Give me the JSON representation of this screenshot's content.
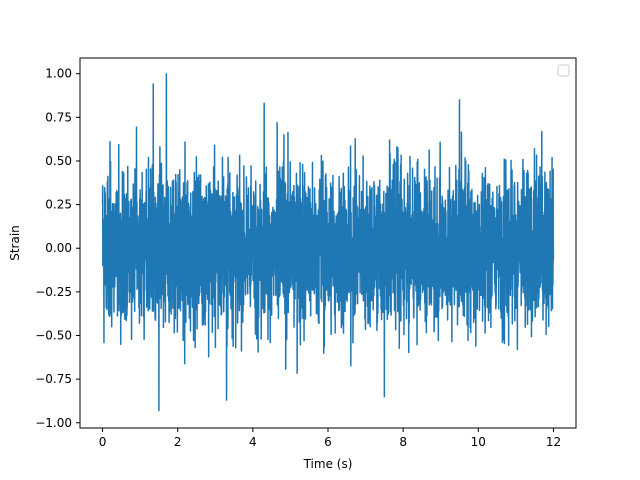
{
  "chart_data": {
    "type": "line",
    "title": "",
    "xlabel": "Time (s)",
    "ylabel": "Strain",
    "xlim": [
      -0.6,
      12.6
    ],
    "ylim": [
      -1.03,
      1.09
    ],
    "xticks": [
      0,
      2,
      4,
      6,
      8,
      10,
      12
    ],
    "xtick_labels": [
      "0",
      "2",
      "4",
      "6",
      "8",
      "10",
      "12"
    ],
    "yticks": [
      -1.0,
      -0.75,
      -0.5,
      -0.25,
      0.0,
      0.25,
      0.5,
      0.75,
      1.0
    ],
    "ytick_labels": [
      "−1.00",
      "−0.75",
      "−0.50",
      "−0.25",
      "0.00",
      "0.25",
      "0.50",
      "0.75",
      "1.00"
    ],
    "grid": false,
    "legend": {
      "placement": "top-right",
      "entries": []
    },
    "series": [
      {
        "color": "#1f77b4",
        "x_range": [
          0,
          12
        ],
        "description_peaks": [
          {
            "x": 1.35,
            "y": 0.94
          },
          {
            "x": 1.7,
            "y": 1.0
          },
          {
            "x": 1.5,
            "y": -0.93
          },
          {
            "x": 3.3,
            "y": -0.87
          },
          {
            "x": 4.3,
            "y": 0.83
          },
          {
            "x": 9.5,
            "y": 0.85
          },
          {
            "x": 7.5,
            "y": -0.85
          }
        ],
        "typical_amplitude": 0.45
      }
    ]
  }
}
